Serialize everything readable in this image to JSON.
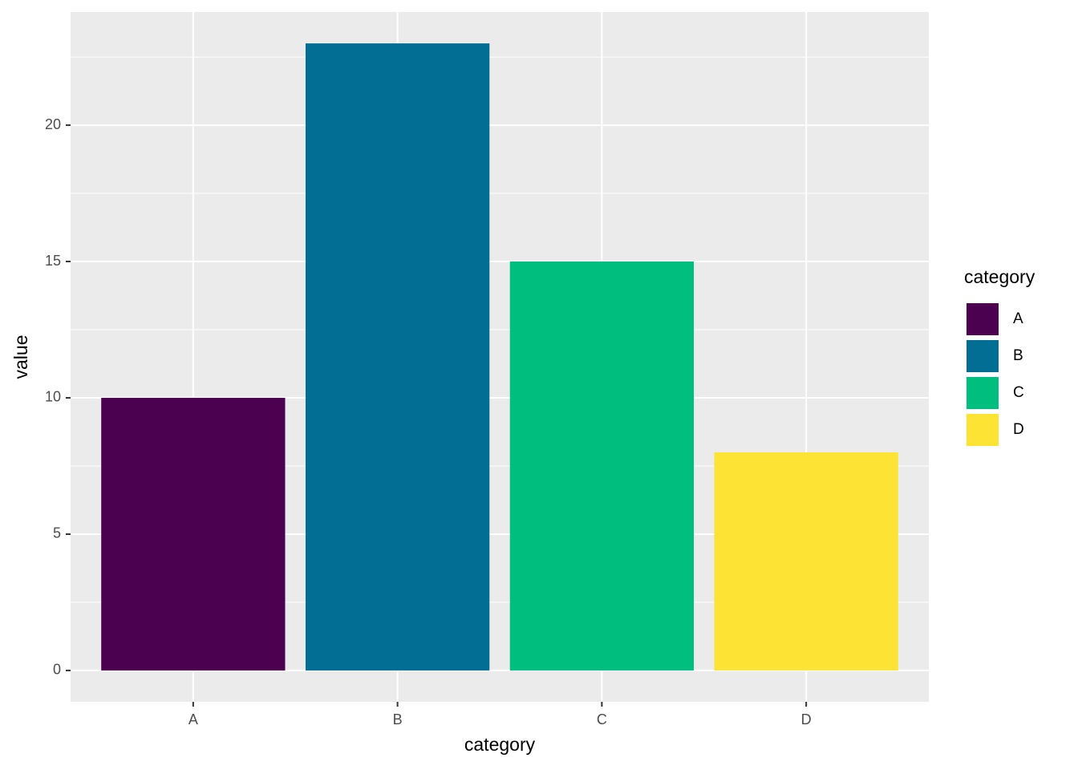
{
  "chart_data": {
    "type": "bar",
    "categories": [
      "A",
      "B",
      "C",
      "D"
    ],
    "values": [
      10,
      23,
      15,
      8
    ],
    "colors": [
      "#4b0050",
      "#026e93",
      "#00be7d",
      "#fde333"
    ],
    "x_label": "category",
    "y_label": "value",
    "legend_title": "category",
    "legend": "right",
    "ylim": [
      -1.15,
      24.15
    ],
    "yticks": [
      0,
      5,
      10,
      15,
      20
    ],
    "grid": true
  }
}
